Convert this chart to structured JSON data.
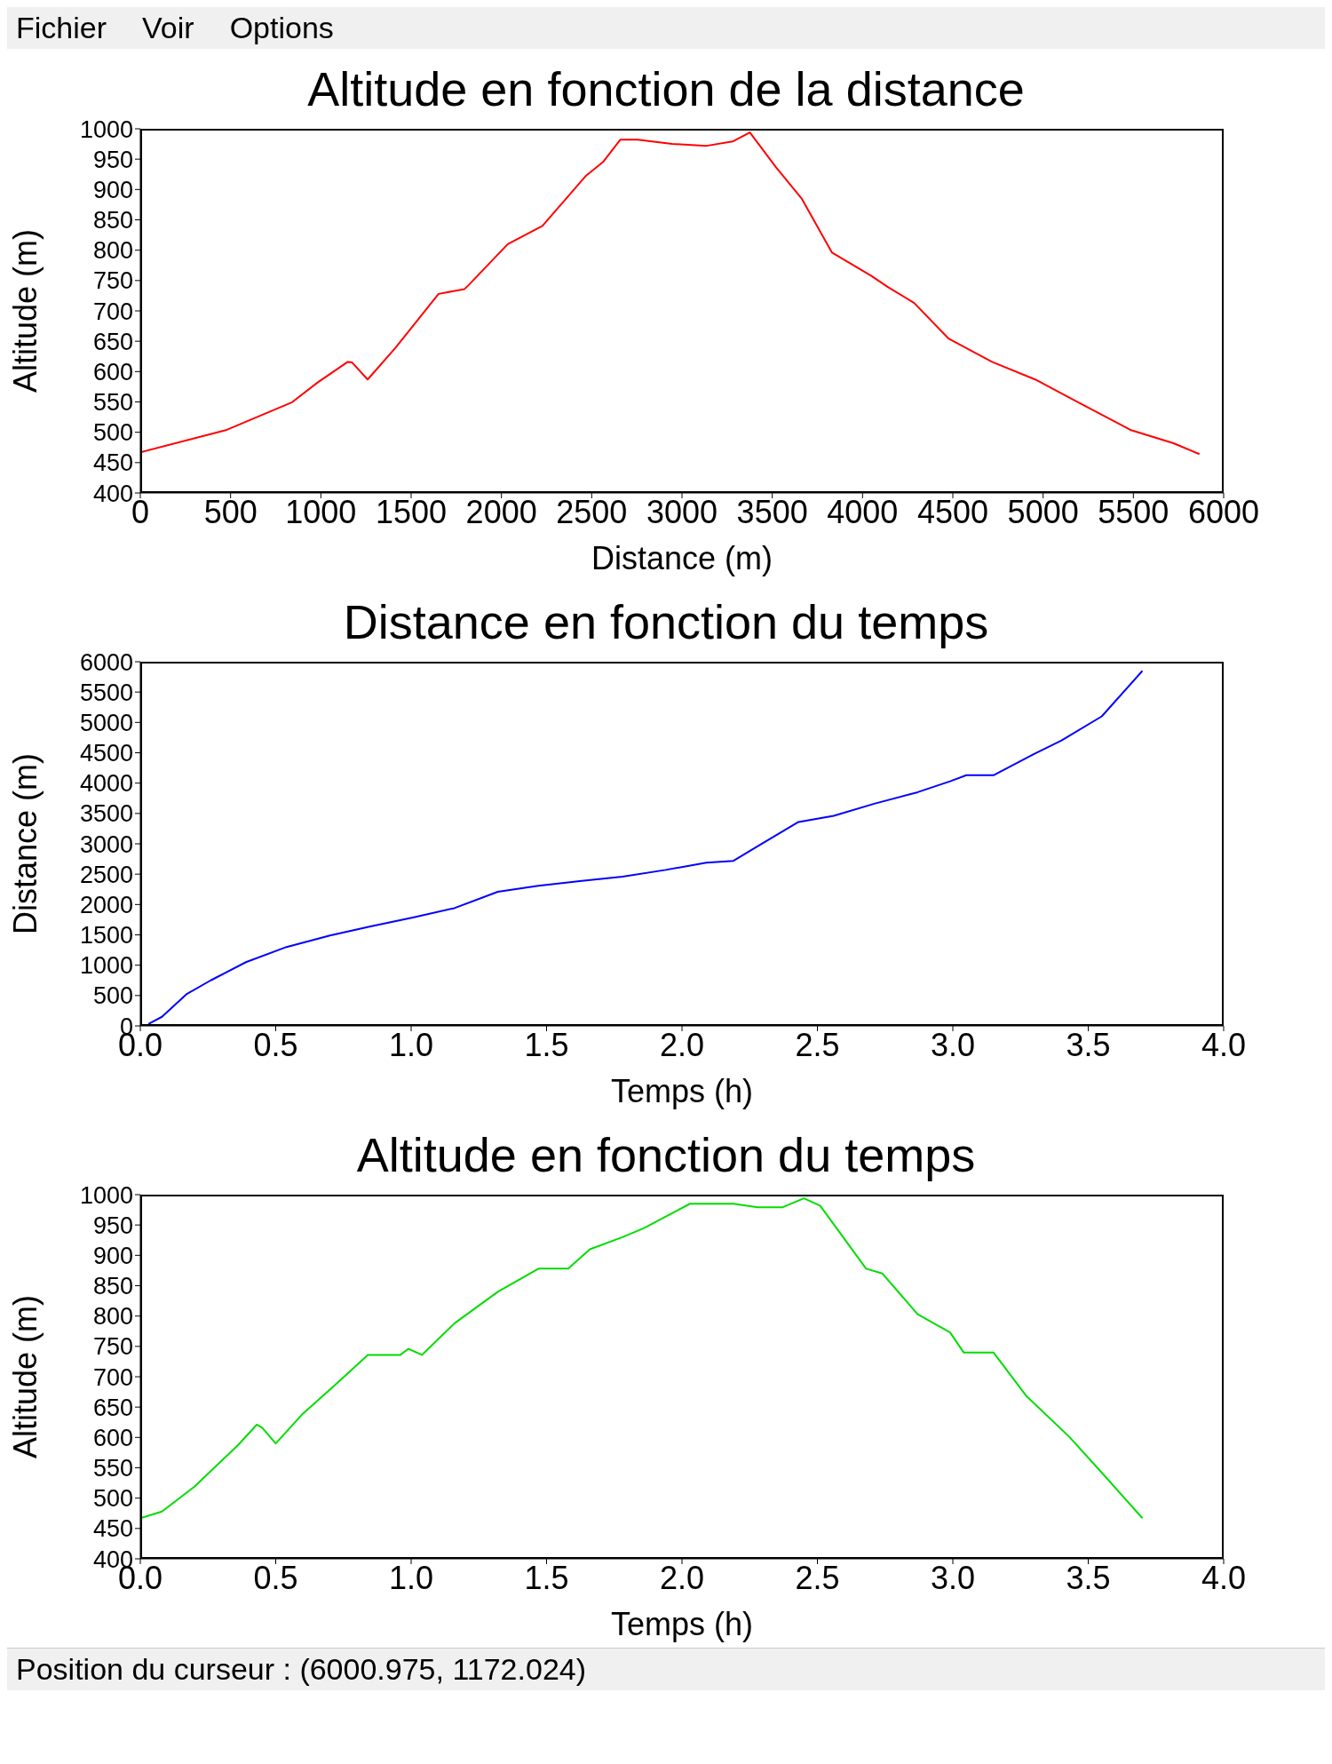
{
  "chart_data": [
    {
      "type": "line",
      "title": "Altitude en fonction de la distance",
      "xlabel": "Distance (m)",
      "ylabel": "Altitude (m)",
      "annotations": [
        "Fichier",
        "Voir",
        "Options"
      ],
      "x": [
        0,
        479,
        838,
        982,
        1149,
        1173,
        1259,
        1413,
        1652,
        1796,
        1820,
        2035,
        2227,
        2466,
        2562,
        2658,
        2754,
        2945,
        3137,
        3280,
        3376,
        3520,
        3663,
        3831,
        4047,
        4142,
        4286,
        4478,
        4717,
        4956,
        5196,
        5483,
        5722,
        5866
      ],
      "values": [
        467,
        504,
        549,
        582,
        616,
        615,
        587,
        639,
        728,
        736,
        743,
        810,
        840,
        922,
        945,
        982,
        982,
        975,
        972,
        979,
        994,
        937,
        885,
        796,
        758,
        739,
        713,
        654,
        616,
        587,
        549,
        504,
        482,
        464
      ],
      "color": "#ff0000",
      "xlim": [
        0,
        6000
      ],
      "xticks": [
        0,
        500,
        1000,
        1500,
        2000,
        2500,
        3000,
        3500,
        4000,
        4500,
        5000,
        5500,
        6000
      ],
      "ylim": [
        400,
        1000
      ],
      "yticks": [
        400,
        450,
        500,
        550,
        600,
        650,
        700,
        750,
        800,
        850,
        900,
        950,
        1000
      ],
      "grid": false
    },
    {
      "type": "line",
      "title": "Distance en fonction du temps",
      "xlabel": "Temps (h)",
      "ylabel": "Distance (m)",
      "x": [
        0.03,
        0.08,
        0.17,
        0.26,
        0.39,
        0.54,
        0.7,
        0.85,
        1.01,
        1.16,
        1.32,
        1.47,
        1.63,
        1.78,
        1.94,
        2.09,
        2.19,
        2.28,
        2.43,
        2.56,
        2.71,
        2.87,
        2.99,
        3.05,
        3.15,
        3.3,
        3.4,
        3.55,
        3.7
      ],
      "values": [
        30,
        150,
        520,
        750,
        1050,
        1300,
        1490,
        1640,
        1790,
        1940,
        2210,
        2310,
        2390,
        2460,
        2570,
        2690,
        2720,
        2960,
        3360,
        3460,
        3660,
        3850,
        4030,
        4130,
        4130,
        4480,
        4700,
        5100,
        5850
      ],
      "color": "#0000ff",
      "xlim": [
        0,
        4
      ],
      "xticks": [
        {
          "value": 0,
          "label": "0.0"
        },
        0.5,
        {
          "value": 1,
          "label": "1.0"
        },
        1.5,
        {
          "value": 2,
          "label": "2.0"
        },
        2.5,
        {
          "value": 3,
          "label": "3.0"
        },
        3.5,
        {
          "value": 4,
          "label": "4.0"
        }
      ],
      "ylim": [
        0,
        6000
      ],
      "yticks": [
        0,
        500,
        1000,
        1500,
        2000,
        2500,
        3000,
        3500,
        4000,
        4500,
        5000,
        5500,
        6000
      ],
      "grid": false
    },
    {
      "type": "line",
      "title": "Altitude en fonction du temps",
      "xlabel": "Temps (h)",
      "ylabel": "Altitude (m)",
      "annotations": [
        "Position du curseur : (6000.975, 1172.024)"
      ],
      "x": [
        0,
        0.08,
        0.2,
        0.36,
        0.43,
        0.45,
        0.5,
        0.6,
        0.73,
        0.84,
        0.96,
        0.99,
        1.04,
        1.16,
        1.32,
        1.47,
        1.58,
        1.66,
        1.78,
        1.86,
        2.03,
        2.19,
        2.28,
        2.37,
        2.45,
        2.51,
        2.68,
        2.74,
        2.87,
        2.99,
        3.04,
        3.15,
        3.27,
        3.43,
        3.55,
        3.7
      ],
      "values": [
        467,
        478,
        519,
        587,
        621,
        616,
        590,
        639,
        691,
        736,
        736,
        746,
        736,
        788,
        840,
        878,
        878,
        910,
        930,
        945,
        985,
        985,
        979,
        979,
        994,
        982,
        878,
        870,
        803,
        773,
        740,
        740,
        669,
        601,
        542,
        467
      ],
      "color": "#00dd00",
      "xlim": [
        0,
        4
      ],
      "xticks": [
        {
          "value": 0,
          "label": "0.0"
        },
        0.5,
        {
          "value": 1,
          "label": "1.0"
        },
        1.5,
        {
          "value": 2,
          "label": "2.0"
        },
        2.5,
        {
          "value": 3,
          "label": "3.0"
        },
        3.5,
        {
          "value": 4,
          "label": "4.0"
        }
      ],
      "ylim": [
        400,
        1000
      ],
      "yticks": [
        400,
        450,
        500,
        550,
        600,
        650,
        700,
        750,
        800,
        850,
        900,
        950,
        1000
      ],
      "grid": false
    }
  ]
}
